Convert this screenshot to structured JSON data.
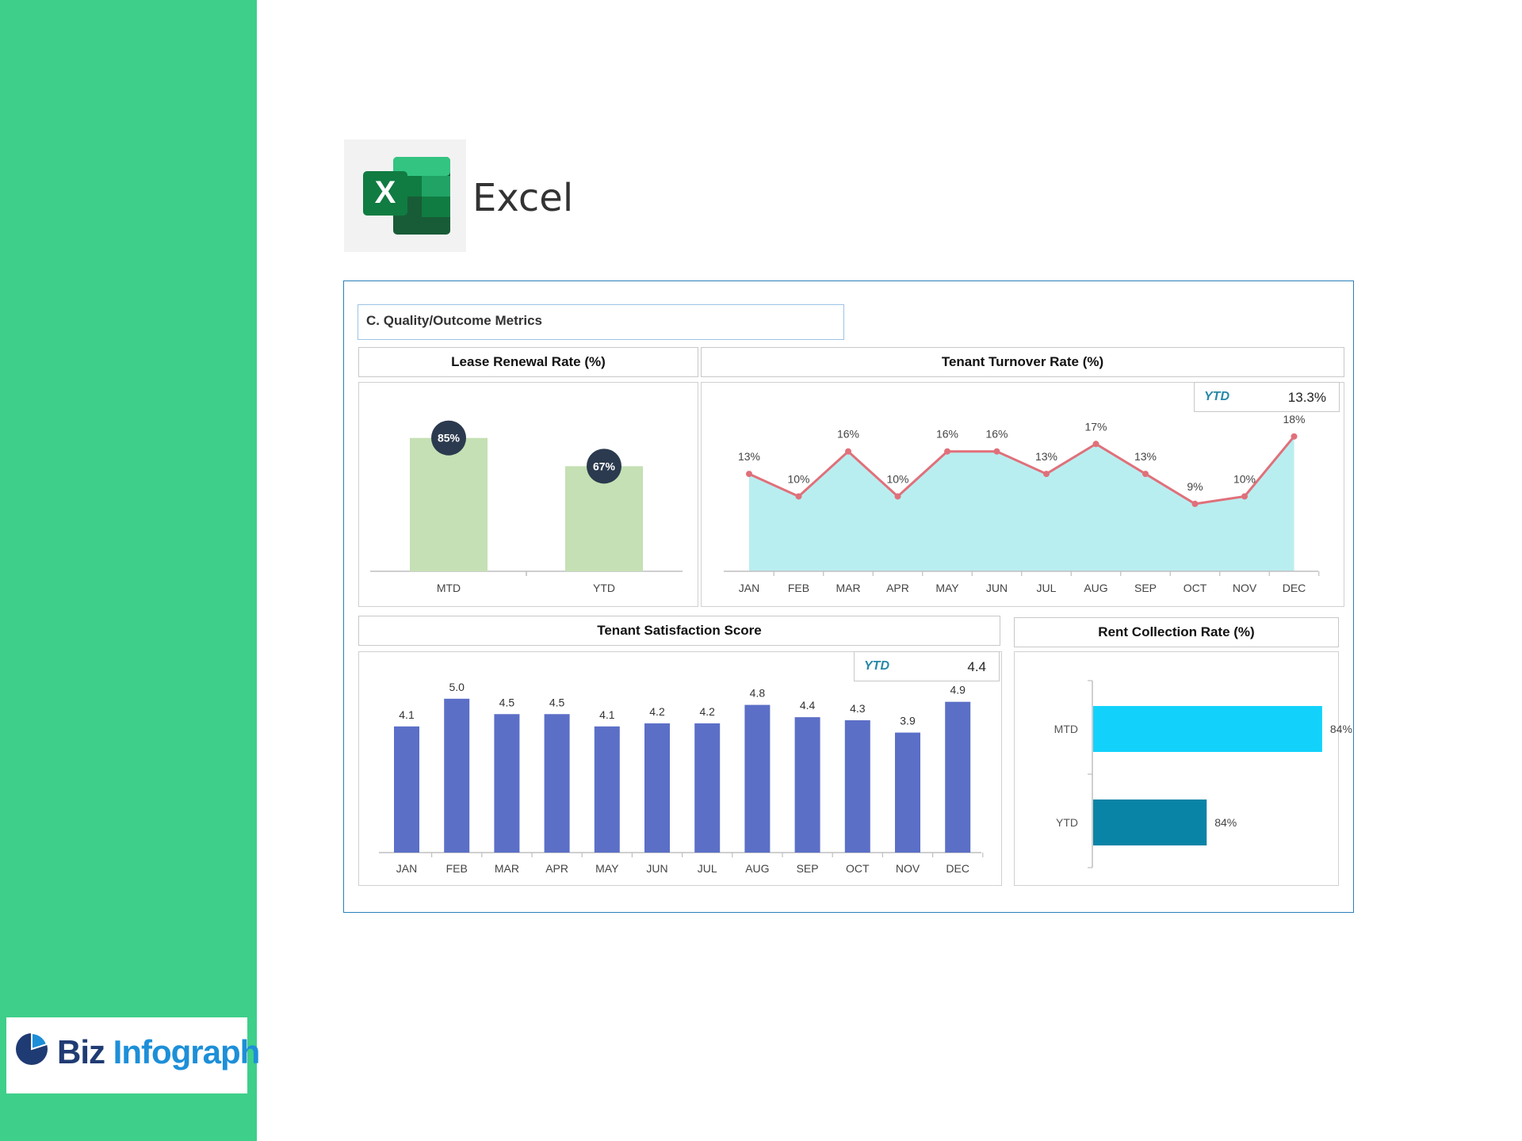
{
  "app": {
    "name": "Excel",
    "brand": {
      "part1": "Biz",
      "part2": "Infograph"
    },
    "icon": "excel-logo-icon"
  },
  "dashboard": {
    "section_title": "C. Quality/Outcome Metrics",
    "colors": {
      "sidebar": "#3ecf8a",
      "border": "#2a80b9"
    }
  },
  "lease_renewal": {
    "title": "Lease Renewal Rate (%)",
    "chart_data": {
      "type": "bar",
      "categories": [
        "MTD",
        "YTD"
      ],
      "values": [
        85,
        67
      ],
      "labels": [
        "85%",
        "67%"
      ],
      "ylim": [
        0,
        100
      ],
      "colors": {
        "bar": "#c5e0b4",
        "badge": "#2b3a4e"
      }
    }
  },
  "tenant_turnover": {
    "title": "Tenant Turnover Rate (%)",
    "ytd_label": "YTD",
    "ytd_value": "13.3%",
    "chart_data": {
      "type": "area",
      "categories": [
        "JAN",
        "FEB",
        "MAR",
        "APR",
        "MAY",
        "JUN",
        "JUL",
        "AUG",
        "SEP",
        "OCT",
        "NOV",
        "DEC"
      ],
      "values": [
        13,
        10,
        16,
        10,
        16,
        16,
        13,
        17,
        13,
        9,
        10,
        18
      ],
      "labels": [
        "13%",
        "10%",
        "16%",
        "10%",
        "16%",
        "16%",
        "13%",
        "17%",
        "13%",
        "9%",
        "10%",
        "18%"
      ],
      "ylim": [
        0,
        22
      ],
      "colors": {
        "fill": "#b9eef0",
        "line": "#e0707a"
      }
    }
  },
  "tenant_satisfaction": {
    "title": "Tenant Satisfaction Score",
    "ytd_label": "YTD",
    "ytd_value": "4.4",
    "chart_data": {
      "type": "bar",
      "categories": [
        "JAN",
        "FEB",
        "MAR",
        "APR",
        "MAY",
        "JUN",
        "JUL",
        "AUG",
        "SEP",
        "OCT",
        "NOV",
        "DEC"
      ],
      "values": [
        4.1,
        5.0,
        4.5,
        4.5,
        4.1,
        4.2,
        4.2,
        4.8,
        4.4,
        4.3,
        3.9,
        4.9
      ],
      "labels": [
        "4.1",
        "5.0",
        "4.5",
        "4.5",
        "4.1",
        "4.2",
        "4.2",
        "4.8",
        "4.4",
        "4.3",
        "3.9",
        "4.9"
      ],
      "ylim": [
        0,
        6
      ],
      "colors": {
        "bar": "#5b6fc7"
      }
    }
  },
  "rent_collection": {
    "title": "Rent Collection Rate (%)",
    "chart_data": {
      "type": "bar",
      "orientation": "horizontal",
      "categories": [
        "MTD",
        "YTD"
      ],
      "values": [
        84,
        84
      ],
      "labels": [
        "84%",
        "84%"
      ],
      "colors": {
        "mtd": "#12d2fb",
        "ytd": "#0a84a6"
      }
    }
  }
}
